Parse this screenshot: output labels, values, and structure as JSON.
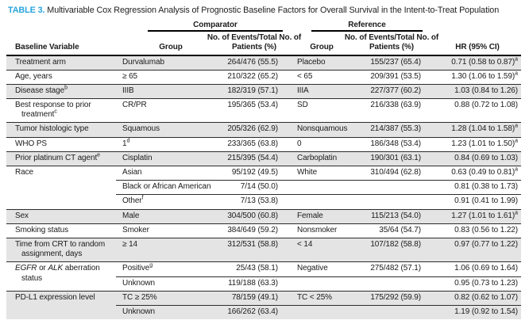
{
  "title": {
    "label": "TABLE 3.",
    "text": "Multivariable Cox Regression Analysis of Prognostic Baseline Factors for Overall Survival in the Intent-to-Treat Population"
  },
  "colors": {
    "accent_blue": "#29A4DC",
    "row_shade": "#E4E4E4",
    "rule_black": "#000000"
  },
  "header": {
    "comparator_label": "Comparator",
    "reference_label": "Reference",
    "columns": [
      {
        "label": "Baseline Variable"
      },
      {
        "label": "Group"
      },
      {
        "lines": [
          "No. of Events/Total No. of",
          "Patients (%)"
        ]
      },
      {
        "label": "Group"
      },
      {
        "lines": [
          "No. of Events/Total No. of",
          "Patients (%)"
        ]
      },
      {
        "label": "HR (95% CI)"
      }
    ]
  },
  "groups": [
    {
      "variable": [
        {
          "t": "Treatment arm"
        }
      ],
      "shaded": true,
      "rows": [
        {
          "group": "Durvalumab",
          "events": "264/476 (55.5)",
          "ref_group": "Placebo",
          "ref_events": "155/237 (65.4)",
          "hr": "0.71 (0.58 to 0.87)",
          "hr_sup": "a"
        }
      ]
    },
    {
      "variable": [
        {
          "t": "Age, years"
        }
      ],
      "shaded": false,
      "rows": [
        {
          "group": "≥ 65",
          "events": "210/322 (65.2)",
          "ref_group": "< 65",
          "ref_events": "209/391 (53.5)",
          "hr": "1.30 (1.06 to 1.59)",
          "hr_sup": "a"
        }
      ]
    },
    {
      "variable": [
        {
          "t": "Disease stage"
        }
      ],
      "variable_sup": "b",
      "shaded": true,
      "rows": [
        {
          "group": "IIIB",
          "events": "182/319 (57.1)",
          "ref_group": "IIIA",
          "ref_events": "227/377 (60.2)",
          "hr": "1.03 (0.84 to 1.26)"
        }
      ]
    },
    {
      "variable": [
        {
          "t": "Best response to prior treatment"
        }
      ],
      "variable_sup": "c",
      "shaded": false,
      "rows": [
        {
          "group": "CR/PR",
          "events": "195/365 (53.4)",
          "ref_group": "SD",
          "ref_events": "216/338 (63.9)",
          "hr": "0.88 (0.72 to 1.08)"
        }
      ]
    },
    {
      "variable": [
        {
          "t": "Tumor histologic type"
        }
      ],
      "shaded": true,
      "rows": [
        {
          "group": "Squamous",
          "events": "205/326 (62.9)",
          "ref_group": "Nonsquamous",
          "ref_events": "214/387 (55.3)",
          "hr": "1.28 (1.04 to 1.58)",
          "hr_sup": "a"
        }
      ]
    },
    {
      "variable": [
        {
          "t": "WHO PS"
        }
      ],
      "shaded": false,
      "rows": [
        {
          "group": "1",
          "group_sup": "d",
          "events": "233/365 (63.8)",
          "ref_group": "0",
          "ref_events": "186/348 (53.4)",
          "hr": "1.23 (1.01 to 1.50)",
          "hr_sup": "a"
        }
      ]
    },
    {
      "variable": [
        {
          "t": "Prior platinum CT agent"
        }
      ],
      "variable_sup": "e",
      "shaded": true,
      "rows": [
        {
          "group": "Cisplatin",
          "events": "215/395 (54.4)",
          "ref_group": "Carboplatin",
          "ref_events": "190/301 (63.1)",
          "hr": "0.84 (0.69 to 1.03)"
        }
      ]
    },
    {
      "variable": [
        {
          "t": "Race"
        }
      ],
      "shaded": false,
      "rows": [
        {
          "group": "Asian",
          "events": "95/192 (49.5)",
          "ref_group": "White",
          "ref_events": "310/494 (62.8)",
          "hr": "0.63 (0.49 to 0.81)",
          "hr_sup": "a"
        },
        {
          "group": "Black or African American",
          "events": "7/14 (50.0)",
          "hr": "0.81 (0.38 to 1.73)"
        },
        {
          "group": "Other",
          "group_sup": "f",
          "events": "7/13 (53.8)",
          "hr": "0.91 (0.41 to 1.99)"
        }
      ]
    },
    {
      "variable": [
        {
          "t": "Sex"
        }
      ],
      "shaded": true,
      "rows": [
        {
          "group": "Male",
          "events": "304/500 (60.8)",
          "ref_group": "Female",
          "ref_events": "115/213 (54.0)",
          "hr": "1.27 (1.01 to 1.61)",
          "hr_sup": "a"
        }
      ]
    },
    {
      "variable": [
        {
          "t": "Smoking status"
        }
      ],
      "shaded": false,
      "rows": [
        {
          "group": "Smoker",
          "events": "384/649 (59.2)",
          "ref_group": "Nonsmoker",
          "ref_events": "35/64 (54.7)",
          "hr": "0.83 (0.56 to 1.22)"
        }
      ]
    },
    {
      "variable": [
        {
          "t": "Time from CRT to random assignment, days"
        }
      ],
      "shaded": true,
      "rows": [
        {
          "group": "≥ 14",
          "events": "312/531 (58.8)",
          "ref_group": "< 14",
          "ref_events": "107/182 (58.8)",
          "hr": "0.97 (0.77 to 1.22)"
        }
      ]
    },
    {
      "variable": [
        {
          "t": "EGFR",
          "i": true
        },
        {
          "t": " or "
        },
        {
          "t": "ALK",
          "i": true
        },
        {
          "t": " aberration status"
        }
      ],
      "shaded": false,
      "rows": [
        {
          "group": "Positive",
          "group_sup": "g",
          "events": "25/43 (58.1)",
          "ref_group": "Negative",
          "ref_events": "275/482 (57.1)",
          "hr": "1.06 (0.69 to 1.64)"
        },
        {
          "group": "Unknown",
          "events": "119/188 (63.3)",
          "hr": "0.95 (0.73 to 1.23)"
        }
      ]
    },
    {
      "variable": [
        {
          "t": "PD-L1 expression level"
        }
      ],
      "shaded": true,
      "rows": [
        {
          "group": "TC ≥ 25%",
          "events": "78/159 (49.1)",
          "ref_group": "TC < 25%",
          "ref_events": "175/292 (59.9)",
          "hr": "0.82 (0.62 to 1.07)"
        },
        {
          "group": "Unknown",
          "events": "166/262 (63.4)",
          "hr": "1.19 (0.92 to 1.54)"
        }
      ]
    }
  ]
}
